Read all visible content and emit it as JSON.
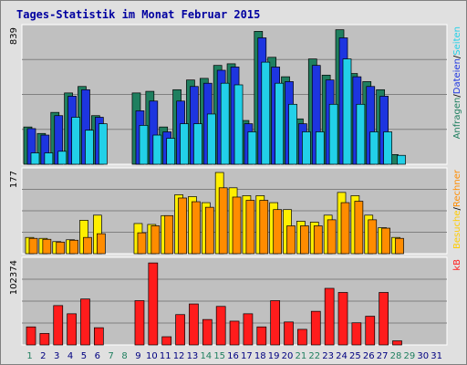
{
  "title": "Tages-Statistik im Monat Februar 2015",
  "chart_data": [
    {
      "type": "bar",
      "panel": "top",
      "ymax_label": "839",
      "ymax": 839,
      "categories": [
        "1",
        "2",
        "3",
        "4",
        "5",
        "6",
        "7",
        "8",
        "9",
        "10",
        "11",
        "12",
        "13",
        "14",
        "15",
        "16",
        "17",
        "18",
        "19",
        "20",
        "21",
        "22",
        "23",
        "24",
        "25",
        "26",
        "27",
        "28",
        "29",
        "30",
        "31"
      ],
      "series": [
        {
          "name": "Anfragen",
          "color": "#1f7f5f",
          "values": [
            230,
            190,
            320,
            440,
            480,
            300,
            null,
            null,
            440,
            450,
            230,
            460,
            520,
            530,
            610,
            620,
            270,
            820,
            660,
            540,
            280,
            650,
            550,
            830,
            560,
            510,
            460,
            60,
            null,
            null,
            null
          ]
        },
        {
          "name": "Dateien",
          "color": "#1d35e0",
          "values": [
            220,
            180,
            300,
            420,
            460,
            290,
            null,
            null,
            330,
            390,
            200,
            390,
            480,
            500,
            580,
            600,
            250,
            780,
            600,
            510,
            250,
            610,
            520,
            780,
            540,
            480,
            420,
            null,
            null,
            null,
            null
          ]
        },
        {
          "name": "Seiten",
          "color": "#22d0e8",
          "values": [
            70,
            70,
            80,
            290,
            210,
            250,
            null,
            null,
            240,
            180,
            160,
            250,
            250,
            310,
            500,
            490,
            200,
            630,
            500,
            370,
            200,
            200,
            370,
            650,
            370,
            200,
            200,
            55,
            null,
            null,
            null
          ]
        }
      ]
    },
    {
      "type": "bar",
      "panel": "middle",
      "ymax_label": "177",
      "ymax": 177,
      "categories": [
        "1",
        "2",
        "3",
        "4",
        "5",
        "6",
        "7",
        "8",
        "9",
        "10",
        "11",
        "12",
        "13",
        "14",
        "15",
        "16",
        "17",
        "18",
        "19",
        "20",
        "21",
        "22",
        "23",
        "24",
        "25",
        "26",
        "27",
        "28",
        "29",
        "30",
        "31"
      ],
      "series": [
        {
          "name": "Besuche",
          "color": "#ffef00",
          "values": [
            35,
            33,
            26,
            30,
            72,
            83,
            null,
            null,
            65,
            63,
            82,
            127,
            123,
            110,
            175,
            142,
            125,
            125,
            110,
            95,
            70,
            68,
            83,
            132,
            125,
            83,
            56,
            35,
            null,
            null,
            null
          ]
        },
        {
          "name": "Rechner",
          "color": "#ff8c00",
          "values": [
            33,
            31,
            25,
            29,
            35,
            43,
            null,
            null,
            45,
            60,
            82,
            120,
            112,
            100,
            142,
            122,
            115,
            115,
            95,
            60,
            60,
            60,
            73,
            110,
            113,
            73,
            55,
            33,
            null,
            null,
            null
          ]
        }
      ]
    },
    {
      "type": "bar",
      "panel": "bottom",
      "ymax_label": "102374",
      "ymax": 102374,
      "categories": [
        "1",
        "2",
        "3",
        "4",
        "5",
        "6",
        "7",
        "8",
        "9",
        "10",
        "11",
        "12",
        "13",
        "14",
        "15",
        "16",
        "17",
        "18",
        "19",
        "20",
        "21",
        "22",
        "23",
        "24",
        "25",
        "26",
        "27",
        "28",
        "29",
        "30",
        "31"
      ],
      "series": [
        {
          "name": "kB",
          "color": "#ff1c1c",
          "values": [
            22000,
            14000,
            48000,
            38000,
            56000,
            21000,
            null,
            null,
            54000,
            100000,
            10000,
            37000,
            50000,
            31000,
            47000,
            29000,
            38000,
            22000,
            54000,
            28000,
            19000,
            41000,
            69000,
            64000,
            27000,
            35000,
            64000,
            5000,
            null,
            null,
            null
          ]
        }
      ]
    }
  ],
  "day_labels": [
    {
      "text": "1",
      "weekend": true
    },
    {
      "text": "2",
      "weekend": false
    },
    {
      "text": "3",
      "weekend": false
    },
    {
      "text": "4",
      "weekend": false
    },
    {
      "text": "5",
      "weekend": false
    },
    {
      "text": "6",
      "weekend": false
    },
    {
      "text": "7",
      "weekend": true
    },
    {
      "text": "8",
      "weekend": true
    },
    {
      "text": "9",
      "weekend": false
    },
    {
      "text": "10",
      "weekend": false
    },
    {
      "text": "11",
      "weekend": false
    },
    {
      "text": "12",
      "weekend": false
    },
    {
      "text": "13",
      "weekend": false
    },
    {
      "text": "14",
      "weekend": true
    },
    {
      "text": "15",
      "weekend": true
    },
    {
      "text": "16",
      "weekend": false
    },
    {
      "text": "17",
      "weekend": false
    },
    {
      "text": "18",
      "weekend": false
    },
    {
      "text": "19",
      "weekend": false
    },
    {
      "text": "20",
      "weekend": false
    },
    {
      "text": "21",
      "weekend": true
    },
    {
      "text": "22",
      "weekend": true
    },
    {
      "text": "23",
      "weekend": false
    },
    {
      "text": "24",
      "weekend": false
    },
    {
      "text": "25",
      "weekend": false
    },
    {
      "text": "26",
      "weekend": false
    },
    {
      "text": "27",
      "weekend": false
    },
    {
      "text": "28",
      "weekend": true
    },
    {
      "text": "29",
      "weekend": true
    },
    {
      "text": "30",
      "weekend": false
    },
    {
      "text": "31",
      "weekend": false
    }
  ],
  "legend_right": {
    "top": [
      {
        "text": "Anfragen",
        "color": "#1f7f5f"
      },
      {
        "text": "/",
        "color": "#000000"
      },
      {
        "text": "Dateien",
        "color": "#1d35e0"
      },
      {
        "text": "/",
        "color": "#000000"
      },
      {
        "text": "Seiten",
        "color": "#22d0e8"
      }
    ],
    "middle": [
      {
        "text": "Besuche",
        "color": "#ffcc00"
      },
      {
        "text": "/",
        "color": "#000000"
      },
      {
        "text": "Rechner",
        "color": "#ff8c00"
      }
    ],
    "bottom": [
      {
        "text": "kB",
        "color": "#ff1c1c"
      }
    ]
  },
  "colors": {
    "panel_bg": "#c0c0c0",
    "gridline": "#808080",
    "weekend_label": "#1f7f5f",
    "weekday_label": "#000080"
  }
}
